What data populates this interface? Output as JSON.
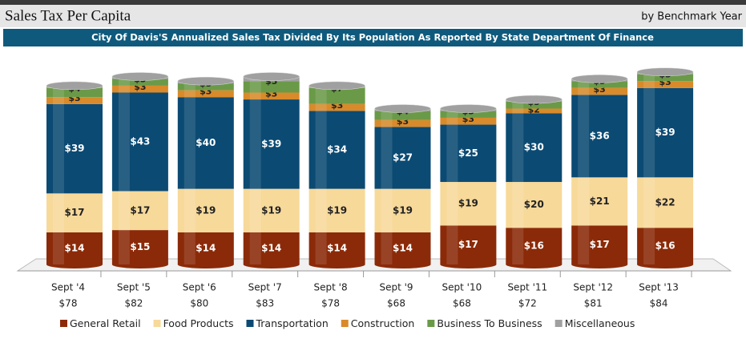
{
  "chart_data": {
    "type": "stacked-bar",
    "title": "Sales Tax Per Capita",
    "subtitle": "by Benchmark Year",
    "banner": "City Of Davis'S Annualized Sales Tax Divided By Its Population As Reported By State Department Of Finance",
    "categories": [
      "Sept '4",
      "Sept '5",
      "Sept '6",
      "Sept '7",
      "Sept '8",
      "Sept '9",
      "Sept '10",
      "Sept '11",
      "Sept '12",
      "Sept '13"
    ],
    "totals": [
      78,
      82,
      80,
      83,
      78,
      68,
      68,
      72,
      81,
      84
    ],
    "total_labels": [
      "$78",
      "$82",
      "$80",
      "$83",
      "$78",
      "$68",
      "$68",
      "$72",
      "$81",
      "$84"
    ],
    "series": [
      {
        "name": "General Retail",
        "color": "#8b2a08",
        "values": [
          14,
          15,
          14,
          14,
          14,
          14,
          17,
          16,
          17,
          16
        ],
        "value_labels": [
          "$14",
          "$15",
          "$14",
          "$14",
          "$14",
          "$14",
          "$17",
          "$16",
          "$17",
          "$16"
        ]
      },
      {
        "name": "Food Products",
        "color": "#f7d99a",
        "values": [
          17,
          17,
          19,
          19,
          19,
          19,
          19,
          20,
          21,
          22
        ],
        "value_labels": [
          "$17",
          "$17",
          "$19",
          "$19",
          "$19",
          "$19",
          "$19",
          "$20",
          "$21",
          "$22"
        ]
      },
      {
        "name": "Transportation",
        "color": "#0b4a73",
        "values": [
          39,
          43,
          40,
          39,
          34,
          27,
          25,
          30,
          36,
          39
        ],
        "value_labels": [
          "$39",
          "$43",
          "$40",
          "$39",
          "$34",
          "$27",
          "$25",
          "$30",
          "$36",
          "$39"
        ]
      },
      {
        "name": "Construction",
        "color": "#d98a2a",
        "values": [
          3,
          3,
          3,
          3,
          3,
          3,
          3,
          2,
          3,
          3
        ],
        "value_labels": [
          "$3",
          "$3",
          "$3",
          "$3",
          "$3",
          "$3",
          "$3",
          "$2",
          "$3",
          "$3"
        ]
      },
      {
        "name": "Business To Business",
        "color": "#6a9a48",
        "values": [
          4,
          3,
          3,
          5,
          7,
          4,
          3,
          3,
          3,
          3
        ],
        "value_labels": [
          "$4",
          "$3",
          "$3",
          "$5",
          "$7",
          "$4",
          "$3",
          "$3",
          "$3",
          "$3"
        ]
      },
      {
        "name": "Miscellaneous",
        "color": "#a0a0a0",
        "values": [
          1,
          1,
          1,
          2,
          1,
          1,
          1,
          1,
          1,
          1
        ],
        "value_labels": [
          "$1",
          "$1",
          "$1",
          "$2",
          "$1",
          "$1",
          "$1",
          "$1",
          "$1",
          "$1"
        ]
      }
    ]
  }
}
